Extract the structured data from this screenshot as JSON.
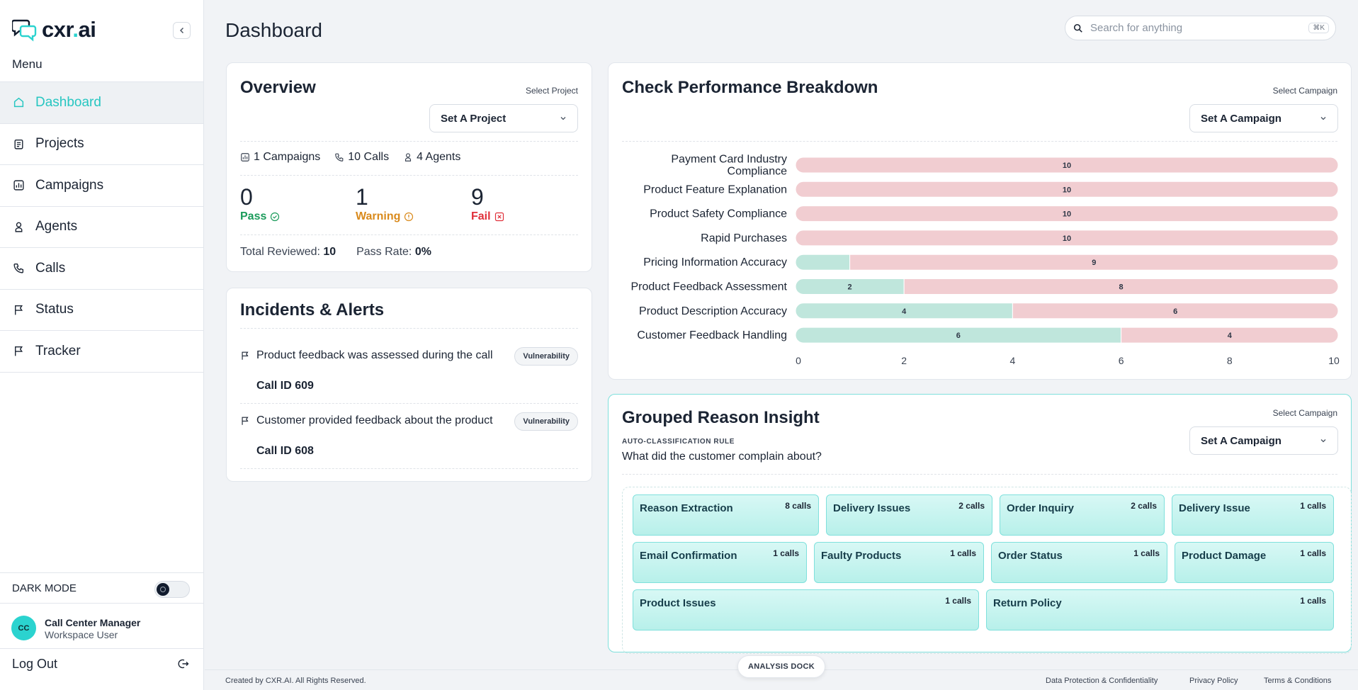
{
  "brand": {
    "logo_text": "cxr",
    "logo_dot": ".",
    "logo_suffix": "ai",
    "accent": "#2bd3cf"
  },
  "sidebar": {
    "menu_label": "Menu",
    "items": [
      {
        "label": "Dashboard",
        "icon": "home-icon",
        "active": true
      },
      {
        "label": "Projects",
        "icon": "clipboard-icon"
      },
      {
        "label": "Campaigns",
        "icon": "chart-icon"
      },
      {
        "label": "Agents",
        "icon": "user-icon"
      },
      {
        "label": "Calls",
        "icon": "phone-icon"
      },
      {
        "label": "Status",
        "icon": "flag-icon"
      },
      {
        "label": "Tracker",
        "icon": "flag-icon"
      }
    ],
    "dark_mode_label": "DARK MODE",
    "user": {
      "initials": "CC",
      "name": "Call Center Manager",
      "role": "Workspace User"
    },
    "logout_label": "Log Out"
  },
  "header": {
    "title": "Dashboard",
    "search_placeholder": "Search for anything",
    "search_shortcut": "⌘K"
  },
  "overview": {
    "title": "Overview",
    "select_label": "Select Project",
    "select_value": "Set A Project",
    "campaigns": "1 Campaigns",
    "calls": "10 Calls",
    "agents": "4 Agents",
    "pass": {
      "value": "0",
      "label": "Pass",
      "color": "#1a9b5a"
    },
    "warning": {
      "value": "1",
      "label": "Warning",
      "color": "#d98a1c"
    },
    "fail": {
      "value": "9",
      "label": "Fail",
      "color": "#e0303a"
    },
    "total_reviewed_label": "Total Reviewed:",
    "total_reviewed_value": "10",
    "pass_rate_label": "Pass Rate:",
    "pass_rate_value": "0%"
  },
  "incidents": {
    "title": "Incidents & Alerts",
    "items": [
      {
        "text": "Product feedback was assessed during the call",
        "call_id": "Call ID 609",
        "badge": "Vulnerability"
      },
      {
        "text": "Customer provided feedback about the product",
        "call_id": "Call ID 608",
        "badge": "Vulnerability"
      }
    ]
  },
  "performance": {
    "title": "Check Performance Breakdown",
    "select_label": "Select Campaign",
    "select_value": "Set A Campaign"
  },
  "chart_data": {
    "type": "bar",
    "orientation": "horizontal",
    "stacked": true,
    "categories": [
      "Payment Card Industry Compliance",
      "Product Feature Explanation",
      "Product Safety Compliance",
      "Rapid Purchases",
      "Pricing Information Accuracy",
      "Product Feedback Assessment",
      "Product Description Accuracy",
      "Customer Feedback Handling"
    ],
    "series": [
      {
        "values": [
          0,
          0,
          0,
          0,
          1,
          2,
          4,
          6
        ],
        "color": "#bfe6dc"
      },
      {
        "values": [
          10,
          10,
          10,
          10,
          9,
          8,
          6,
          4
        ],
        "color": "#f1cdd1"
      }
    ],
    "xlim": [
      0,
      10
    ],
    "xticks": [
      0,
      2,
      4,
      6,
      8,
      10
    ],
    "grid": false
  },
  "grouped": {
    "title": "Grouped Reason Insight",
    "select_label": "Select Campaign",
    "select_value": "Set A Campaign",
    "rule_label": "AUTO-CLASSIFICATION RULE",
    "question": "What did the customer complain about?",
    "rows": [
      [
        {
          "name": "Reason Extraction",
          "count": "8 calls"
        },
        {
          "name": "Delivery Issues",
          "count": "2 calls"
        },
        {
          "name": "Order Inquiry",
          "count": "2 calls"
        },
        {
          "name": "Delivery Issue",
          "count": "1 calls"
        }
      ],
      [
        {
          "name": "Email Confirmation",
          "count": "1 calls"
        },
        {
          "name": "Faulty Products",
          "count": "1 calls"
        },
        {
          "name": "Order Status",
          "count": "1 calls"
        },
        {
          "name": "Product Damage",
          "count": "1 calls"
        }
      ],
      [
        {
          "name": "Product Issues",
          "count": "1 calls"
        },
        {
          "name": "Return Policy",
          "count": "1 calls"
        }
      ]
    ]
  },
  "footer": {
    "copyright": "Created by CXR.AI. All Rights Reserved.",
    "dock": "ANALYSIS DOCK",
    "links": [
      "Data Protection & Confidentiality",
      "Privacy Policy",
      "Terms & Conditions"
    ]
  }
}
